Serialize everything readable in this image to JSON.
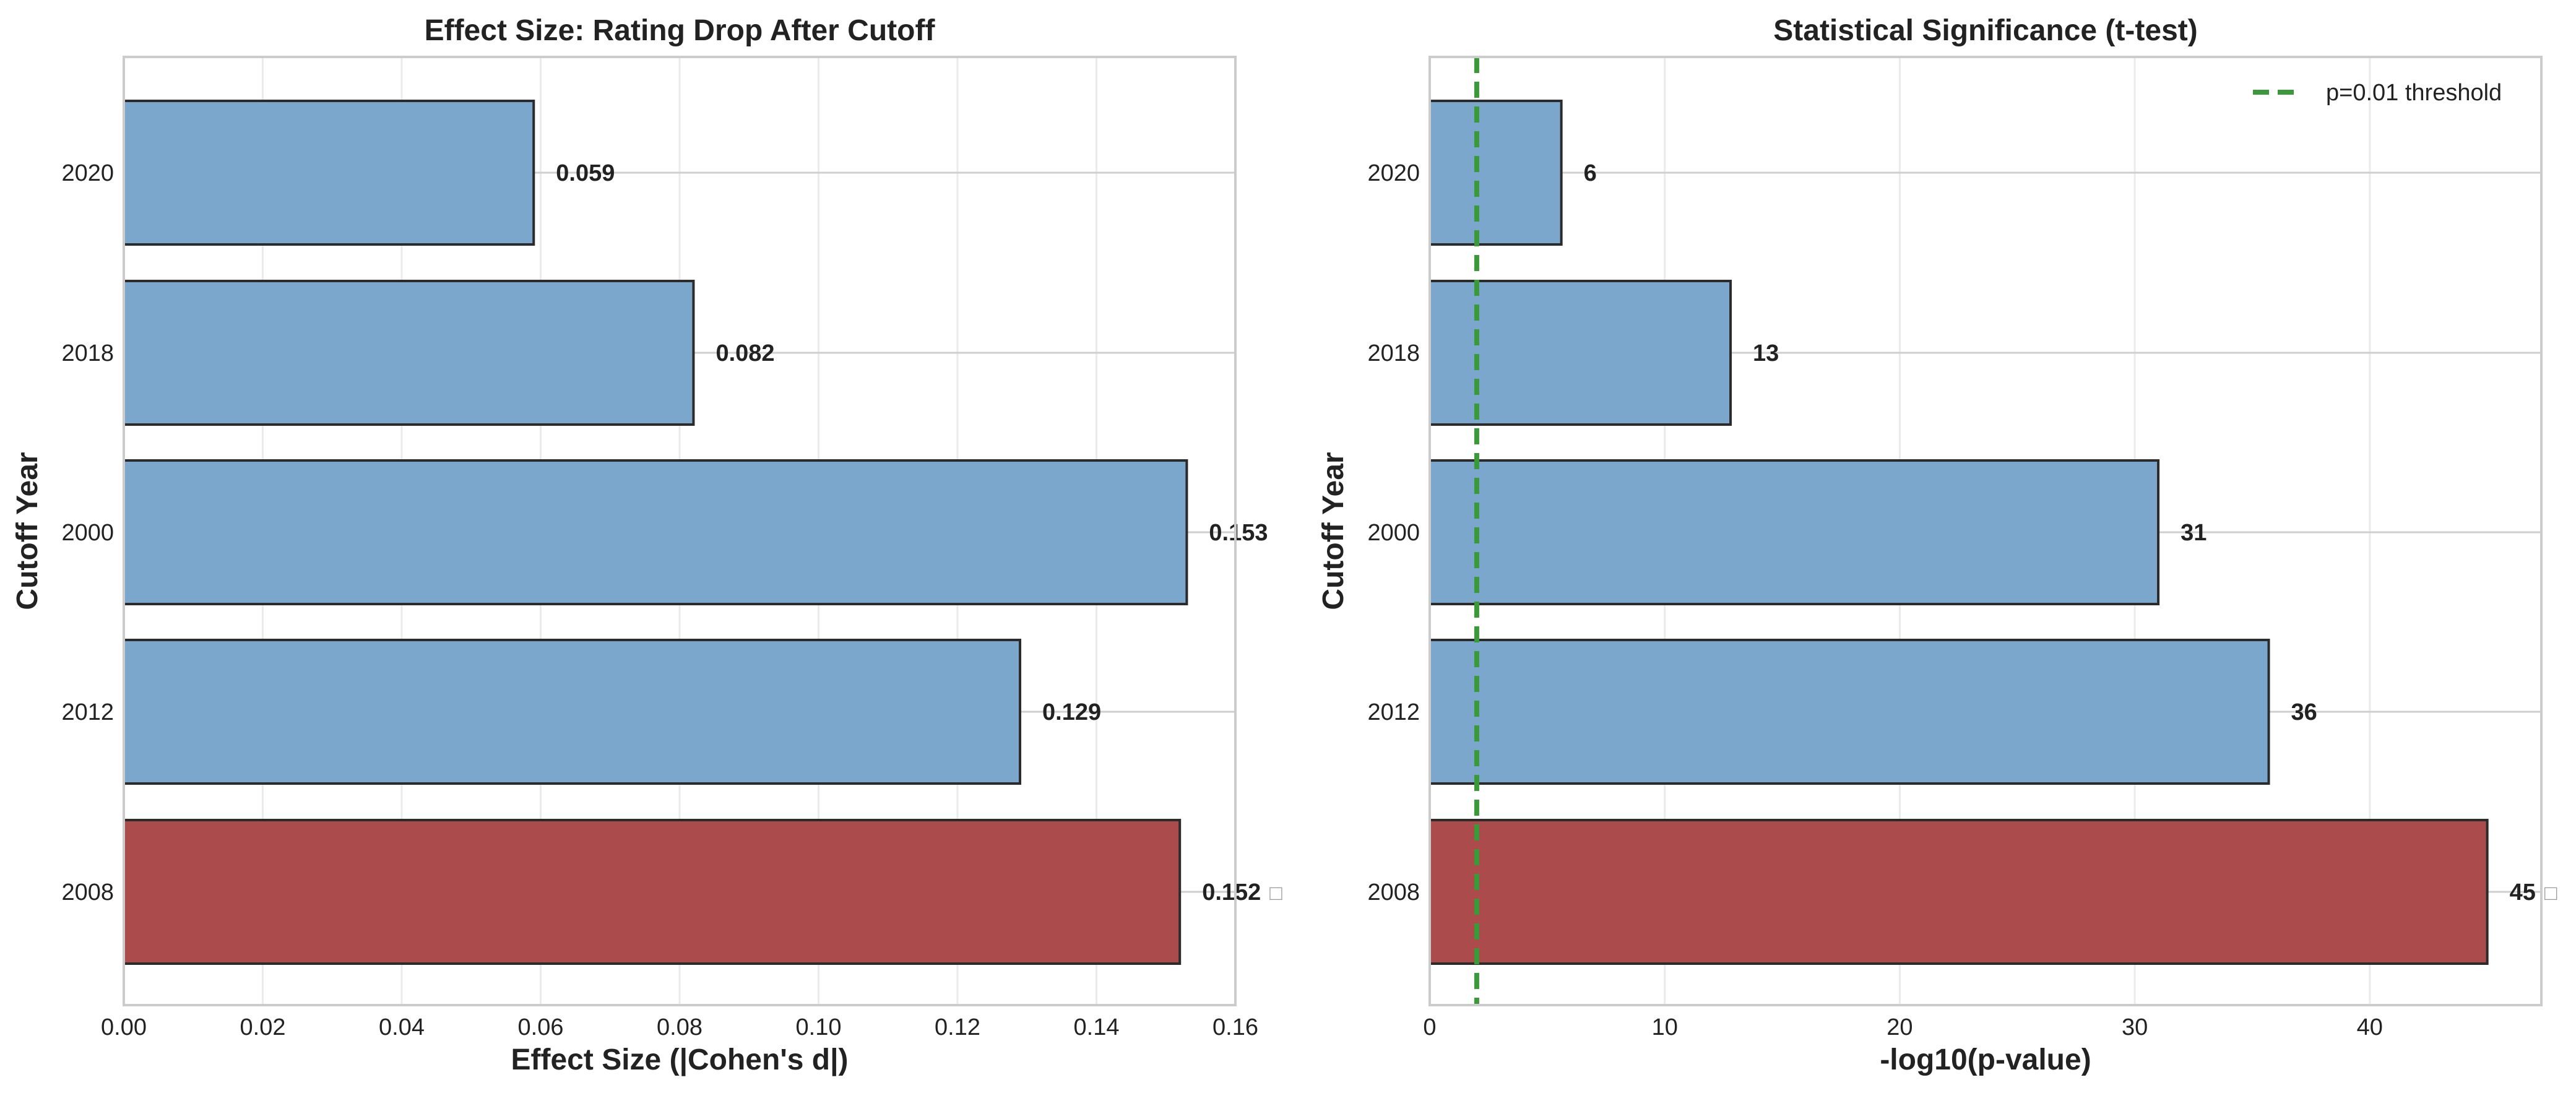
{
  "figure": {
    "background": "#ffffff"
  },
  "chart_data": [
    {
      "type": "bar",
      "orientation": "horizontal",
      "title": "Effect Size: Rating Drop After Cutoff",
      "xlabel": "Effect Size (|Cohen's d|)",
      "ylabel": "Cutoff Year",
      "categories": [
        "2020",
        "2018",
        "2000",
        "2012",
        "2008"
      ],
      "values": [
        0.059,
        0.082,
        0.153,
        0.129,
        0.152
      ],
      "data_labels": [
        "0.059",
        "0.082",
        "0.153",
        "0.129",
        "0.152"
      ],
      "highlight_marks": [
        "",
        "",
        "",
        "",
        "□"
      ],
      "bar_colors": [
        "#7ba7cc",
        "#7ba7cc",
        "#7ba7cc",
        "#7ba7cc",
        "#ab4b4b"
      ],
      "xlim": [
        0,
        0.16
      ],
      "xticks": [
        0,
        0.02,
        0.04,
        0.06,
        0.08,
        0.1,
        0.12,
        0.14,
        0.16
      ],
      "xtick_labels": [
        "0.00",
        "0.02",
        "0.04",
        "0.06",
        "0.08",
        "0.10",
        "0.12",
        "0.14",
        "0.16"
      ],
      "grid": true
    },
    {
      "type": "bar",
      "orientation": "horizontal",
      "title": "Statistical Significance (t-test)",
      "xlabel": "-log10(p-value)",
      "ylabel": "Cutoff Year",
      "categories": [
        "2020",
        "2018",
        "2000",
        "2012",
        "2008"
      ],
      "values": [
        5.6,
        12.8,
        31.0,
        35.7,
        45.0
      ],
      "data_labels": [
        "6",
        "13",
        "31",
        "36",
        "45"
      ],
      "highlight_marks": [
        "",
        "",
        "",
        "",
        "□"
      ],
      "bar_colors": [
        "#7ba7cc",
        "#7ba7cc",
        "#7ba7cc",
        "#7ba7cc",
        "#ab4b4b"
      ],
      "xlim": [
        0,
        47.3
      ],
      "xticks": [
        0,
        10,
        20,
        30,
        40
      ],
      "xtick_labels": [
        "0",
        "10",
        "20",
        "30",
        "40"
      ],
      "reference_line": {
        "x": 2,
        "label": "p=0.01 threshold",
        "color": "#3a9a3a"
      },
      "legend": {
        "position": "top-right",
        "entries": [
          "p=0.01 threshold"
        ]
      },
      "grid": true
    }
  ]
}
